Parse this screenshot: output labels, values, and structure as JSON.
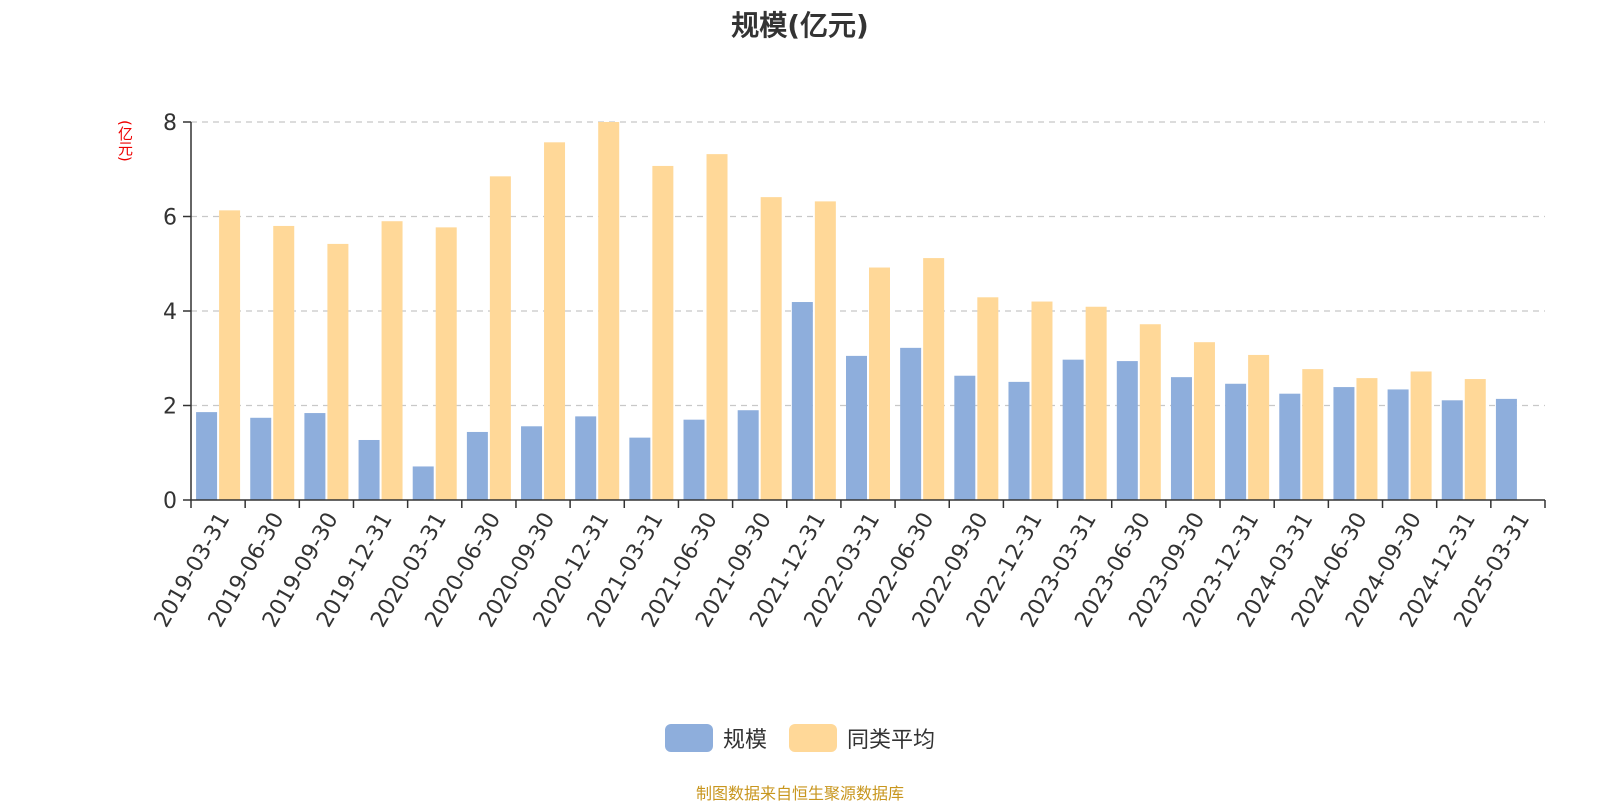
{
  "chart_data": {
    "type": "bar",
    "title": "规模(亿元)",
    "ylabel": "(亿元)",
    "ylim": [
      0,
      8
    ],
    "yticks": [
      0,
      2,
      4,
      6,
      8
    ],
    "grid": true,
    "legend_position": "bottom",
    "categories": [
      "2019-03-31",
      "2019-06-30",
      "2019-09-30",
      "2019-12-31",
      "2020-03-31",
      "2020-06-30",
      "2020-09-30",
      "2020-12-31",
      "2021-03-31",
      "2021-06-30",
      "2021-09-30",
      "2021-12-31",
      "2022-03-31",
      "2022-06-30",
      "2022-09-30",
      "2022-12-31",
      "2023-03-31",
      "2023-06-30",
      "2023-09-30",
      "2023-12-31",
      "2024-03-31",
      "2024-06-30",
      "2024-09-30",
      "2024-12-31",
      "2025-03-31"
    ],
    "series": [
      {
        "name": "规模",
        "color": "#8eaedc",
        "values": [
          1.86,
          1.74,
          1.84,
          1.27,
          0.71,
          1.44,
          1.56,
          1.77,
          1.32,
          1.7,
          1.9,
          4.19,
          3.05,
          3.22,
          2.63,
          2.5,
          2.97,
          2.94,
          2.6,
          2.46,
          2.25,
          2.39,
          2.34,
          2.11,
          2.14
        ]
      },
      {
        "name": "同类平均",
        "color": "#ffd898",
        "values": [
          6.13,
          5.8,
          5.42,
          5.9,
          5.77,
          6.85,
          7.57,
          8.0,
          7.07,
          7.32,
          6.41,
          6.32,
          4.92,
          5.12,
          4.29,
          4.2,
          4.09,
          3.72,
          3.34,
          3.07,
          2.77,
          2.58,
          2.72,
          2.56,
          null
        ]
      }
    ],
    "source_note": "制图数据来自恒生聚源数据库"
  }
}
